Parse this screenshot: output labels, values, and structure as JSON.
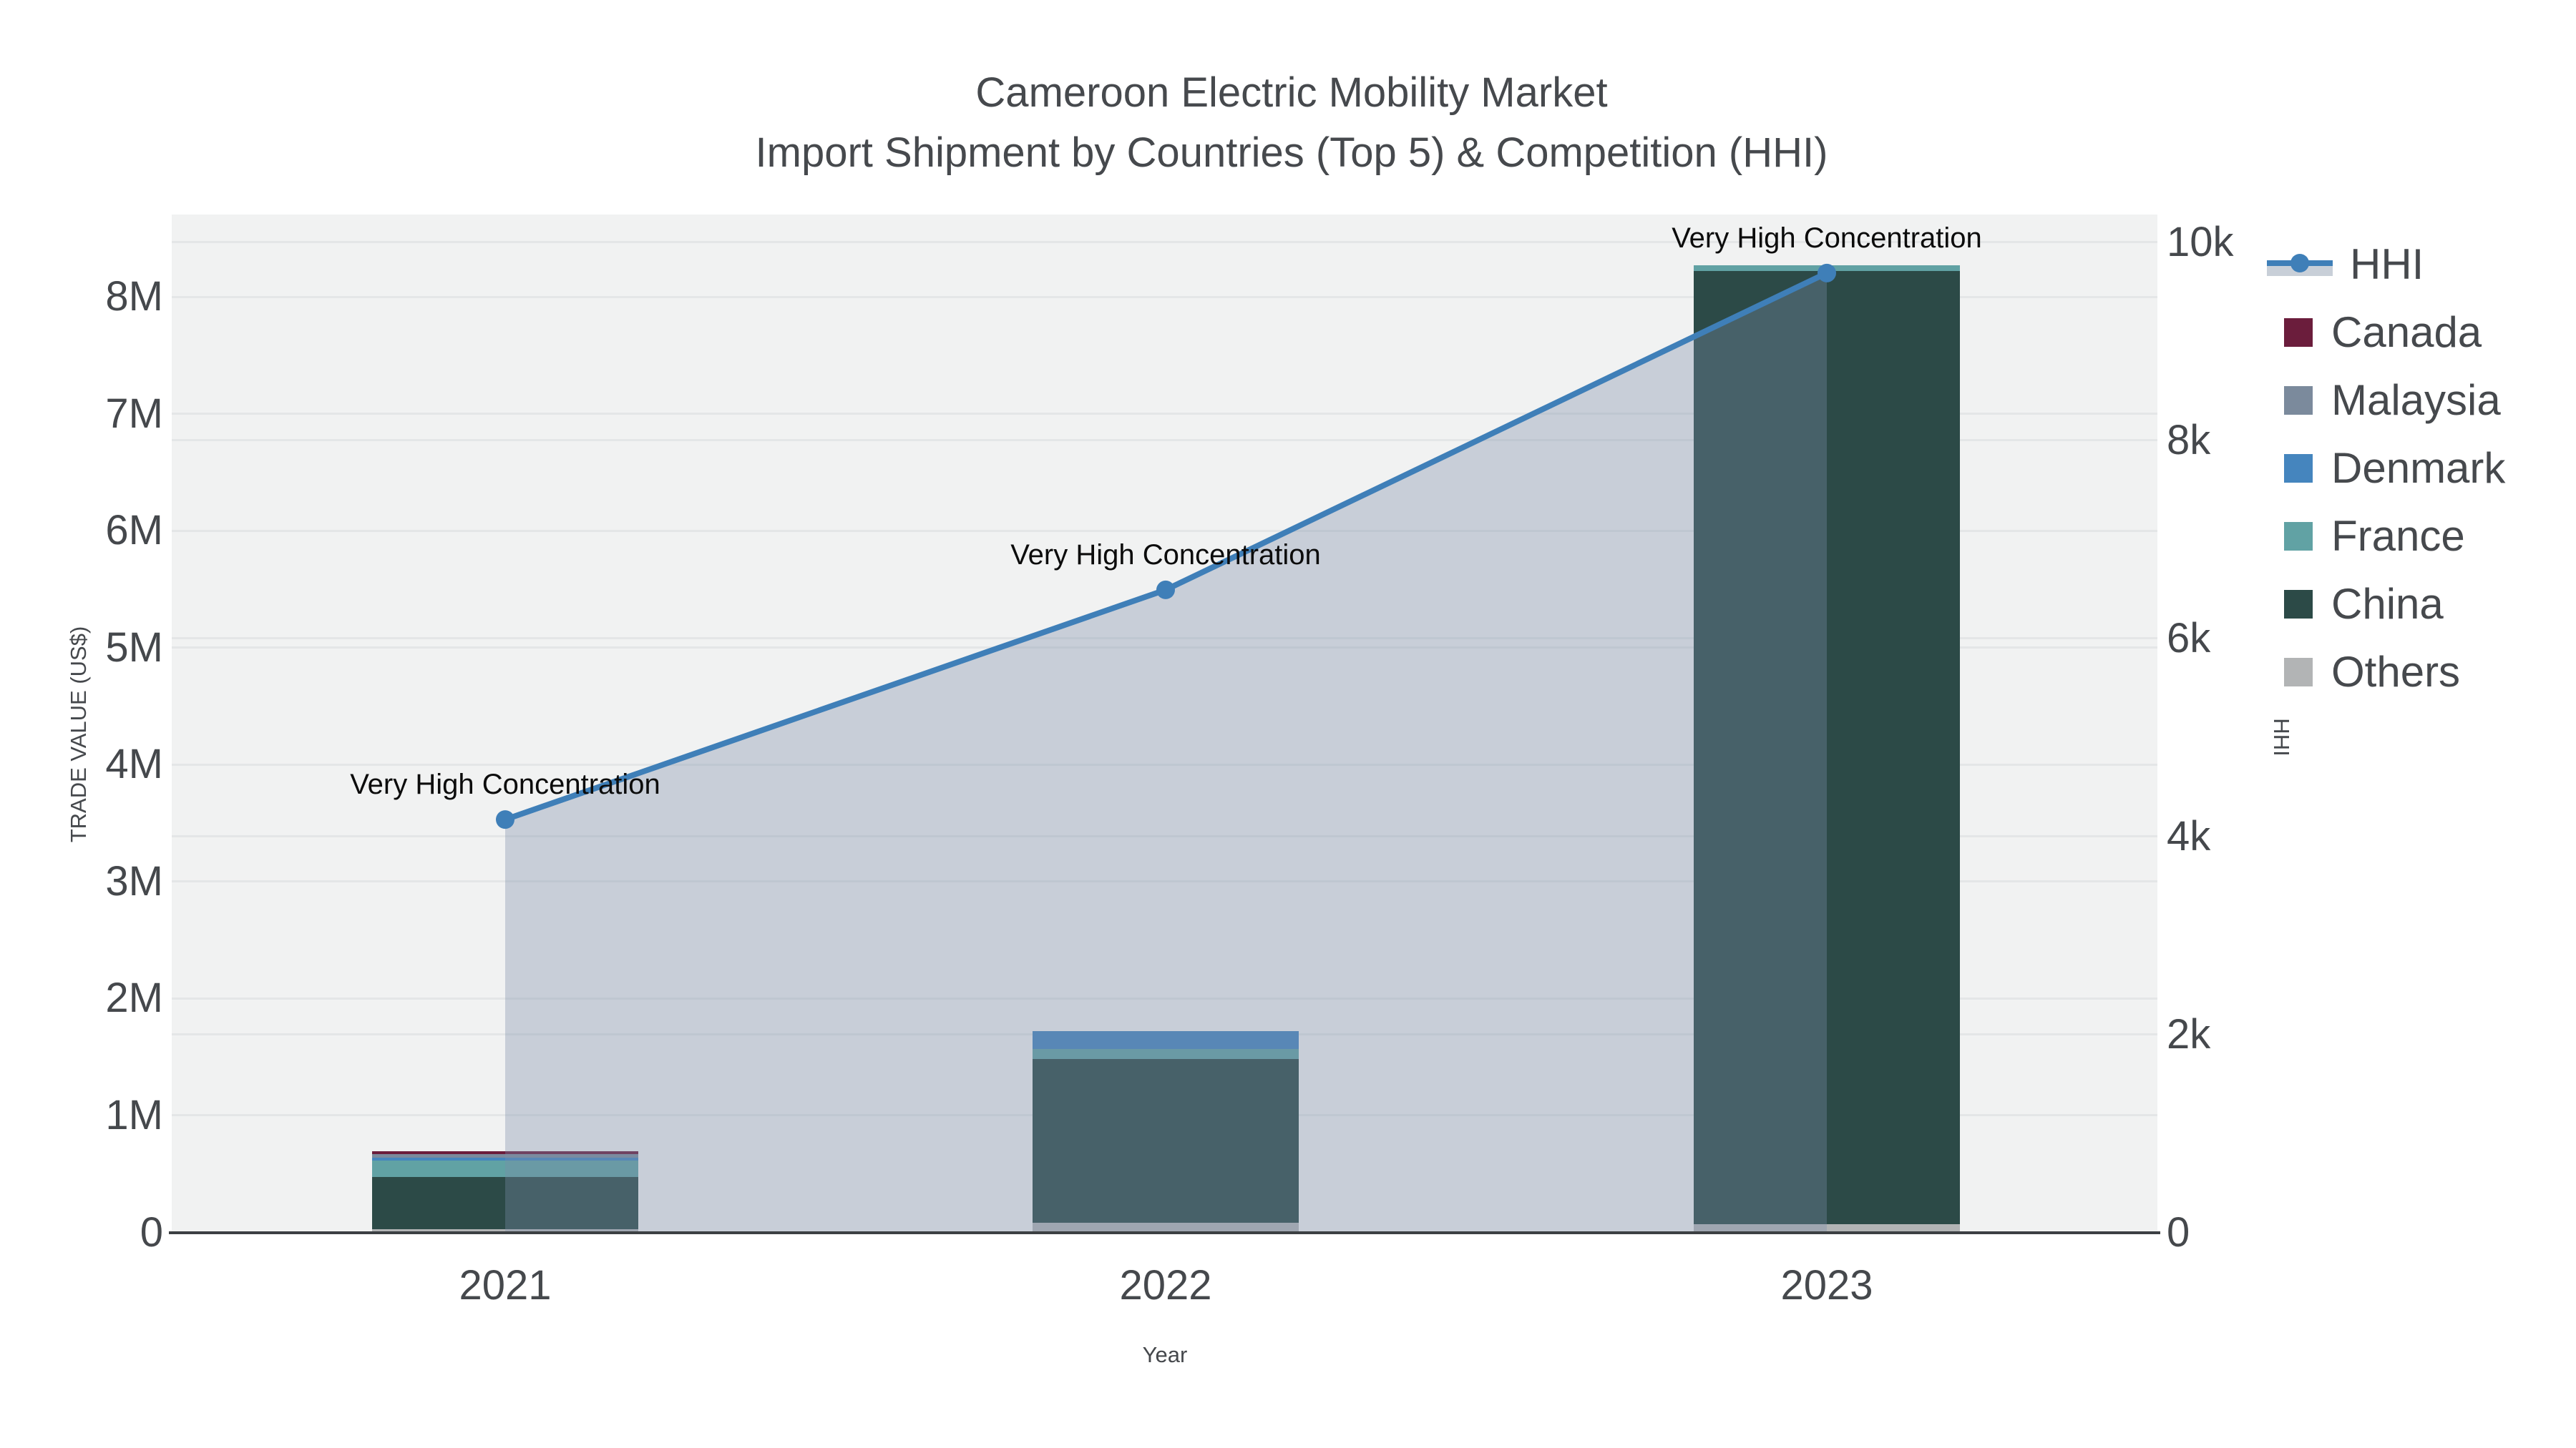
{
  "title": {
    "line1": "Cameroon Electric Mobility Market",
    "line2": "Import Shipment by Countries (Top 5) & Competition (HHI)"
  },
  "chart_data": {
    "type": "bar+line",
    "categories": [
      "2021",
      "2022",
      "2023"
    ],
    "xlabel": "Year",
    "y_left": {
      "label": "TRADE VALUE (US$)",
      "ticks": [
        {
          "label": "0",
          "value": 0
        },
        {
          "label": "1M",
          "value": 1000000
        },
        {
          "label": "2M",
          "value": 2000000
        },
        {
          "label": "3M",
          "value": 3000000
        },
        {
          "label": "4M",
          "value": 4000000
        },
        {
          "label": "5M",
          "value": 5000000
        },
        {
          "label": "6M",
          "value": 6000000
        },
        {
          "label": "7M",
          "value": 7000000
        },
        {
          "label": "8M",
          "value": 8000000
        }
      ],
      "range": [
        0,
        8706000
      ]
    },
    "y_right": {
      "label": "HHI",
      "ticks": [
        {
          "label": "0",
          "value": 0
        },
        {
          "label": "2k",
          "value": 2000
        },
        {
          "label": "4k",
          "value": 4000
        },
        {
          "label": "6k",
          "value": 6000
        },
        {
          "label": "8k",
          "value": 8000
        },
        {
          "label": "10k",
          "value": 10000
        }
      ],
      "range": [
        0,
        10281
      ]
    },
    "series": [
      {
        "name": "Canada",
        "color": "#6b1d3c",
        "values": [
          26000,
          0,
          0
        ]
      },
      {
        "name": "Malaysia",
        "color": "#7b8a9c",
        "values": [
          32000,
          0,
          0
        ]
      },
      {
        "name": "Denmark",
        "color": "#4585be",
        "values": [
          25000,
          153000,
          0
        ]
      },
      {
        "name": "France",
        "color": "#61a2a4",
        "values": [
          137000,
          88000,
          51000
        ]
      },
      {
        "name": "China",
        "color": "#2c4a47",
        "values": [
          448000,
          1400000,
          8150000
        ]
      },
      {
        "name": "Others",
        "color": "#b2b4b5",
        "values": [
          27000,
          83000,
          71000
        ]
      }
    ],
    "stack_order_bottom_to_top": [
      "Others",
      "China",
      "France",
      "Denmark",
      "Malaysia",
      "Canada"
    ],
    "line_series": {
      "name": "HHI",
      "color": "#3f7fb8",
      "fill_color": "rgba(124,141,169,0.35)",
      "values": [
        4170,
        6490,
        9690
      ]
    },
    "annotations": [
      {
        "text": "Very High Concentration",
        "category": "2021"
      },
      {
        "text": "Very High Concentration",
        "category": "2022"
      },
      {
        "text": "Very High Concentration",
        "category": "2023"
      }
    ],
    "legend": [
      {
        "label": "HHI",
        "type": "line",
        "color": "#3f7fb8",
        "band_color": "#c8cfd8"
      },
      {
        "label": "Canada",
        "type": "swatch",
        "color": "#6b1d3c"
      },
      {
        "label": "Malaysia",
        "type": "swatch",
        "color": "#7b8a9c"
      },
      {
        "label": "Denmark",
        "type": "swatch",
        "color": "#4585be"
      },
      {
        "label": "France",
        "type": "swatch",
        "color": "#61a2a4"
      },
      {
        "label": "China",
        "type": "swatch",
        "color": "#2c4a47"
      },
      {
        "label": "Others",
        "type": "swatch",
        "color": "#b2b4b5"
      }
    ],
    "grid": true,
    "legend_position": "right"
  }
}
